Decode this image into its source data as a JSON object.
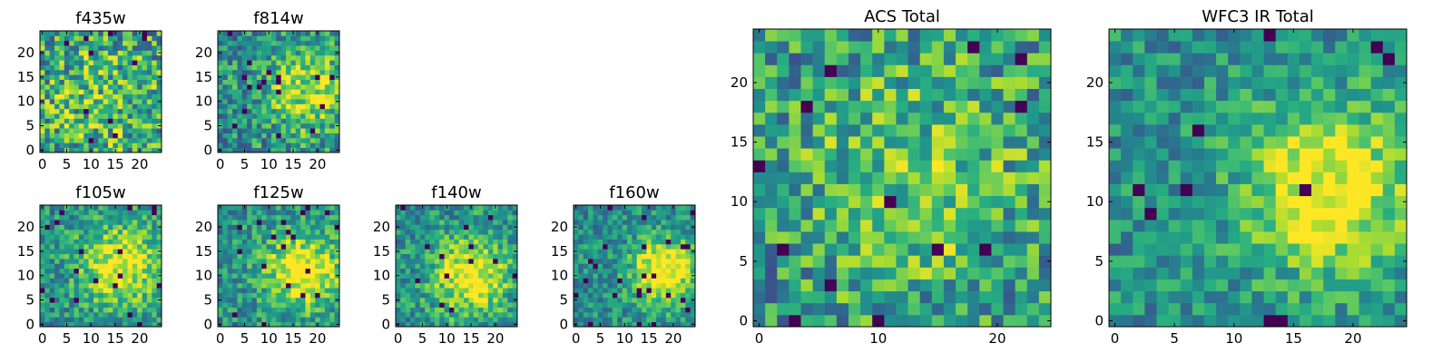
{
  "chart_data": [
    {
      "type": "heatmap",
      "title": "f435w",
      "xlabel": "",
      "ylabel": "",
      "xlim": [
        -0.5,
        24.5
      ],
      "ylim": [
        -0.5,
        24.5
      ],
      "xticks": [
        "0",
        "5",
        "10",
        "15",
        "20"
      ],
      "yticks": [
        "0",
        "5",
        "10",
        "15",
        "20"
      ],
      "grid": false,
      "colormap": "viridis",
      "pixel_grid": [
        25,
        25
      ],
      "value_range": [
        0,
        1
      ],
      "pattern": {
        "seed": 11,
        "blob_x": 12,
        "blob_y": 10,
        "blob_sigma": 12,
        "blob_amp": 0.2,
        "noise": 0.7
      }
    },
    {
      "type": "heatmap",
      "title": "f814w",
      "xlabel": "",
      "ylabel": "",
      "xlim": [
        -0.5,
        24.5
      ],
      "ylim": [
        -0.5,
        24.5
      ],
      "xticks": [
        "0",
        "5",
        "10",
        "15",
        "20"
      ],
      "yticks": [
        "0",
        "5",
        "10",
        "15",
        "20"
      ],
      "grid": false,
      "colormap": "viridis",
      "pixel_grid": [
        25,
        25
      ],
      "value_range": [
        0,
        1
      ],
      "pattern": {
        "seed": 23,
        "blob_x": 18,
        "blob_y": 12,
        "blob_sigma": 6,
        "blob_amp": 0.4,
        "noise": 0.55
      }
    },
    {
      "type": "heatmap",
      "title": "f105w",
      "xlabel": "",
      "ylabel": "",
      "xlim": [
        -0.5,
        24.5
      ],
      "ylim": [
        -0.5,
        24.5
      ],
      "xticks": [
        "0",
        "5",
        "10",
        "15",
        "20"
      ],
      "yticks": [
        "0",
        "5",
        "10",
        "15",
        "20"
      ],
      "grid": false,
      "colormap": "viridis",
      "pixel_grid": [
        25,
        25
      ],
      "value_range": [
        0,
        1
      ],
      "pattern": {
        "seed": 37,
        "blob_x": 16,
        "blob_y": 12,
        "blob_sigma": 6,
        "blob_amp": 0.5,
        "noise": 0.45
      }
    },
    {
      "type": "heatmap",
      "title": "f125w",
      "xlabel": "",
      "ylabel": "",
      "xlim": [
        -0.5,
        24.5
      ],
      "ylim": [
        -0.5,
        24.5
      ],
      "xticks": [
        "0",
        "5",
        "10",
        "15",
        "20"
      ],
      "yticks": [
        "0",
        "5",
        "10",
        "15",
        "20"
      ],
      "grid": false,
      "colormap": "viridis",
      "pixel_grid": [
        25,
        25
      ],
      "value_range": [
        0,
        1
      ],
      "pattern": {
        "seed": 41,
        "blob_x": 17,
        "blob_y": 11,
        "blob_sigma": 5.5,
        "blob_amp": 0.55,
        "noise": 0.45
      }
    },
    {
      "type": "heatmap",
      "title": "f140w",
      "xlabel": "",
      "ylabel": "",
      "xlim": [
        -0.5,
        24.5
      ],
      "ylim": [
        -0.5,
        24.5
      ],
      "xticks": [
        "0",
        "5",
        "10",
        "15",
        "20"
      ],
      "yticks": [
        "0",
        "5",
        "10",
        "15",
        "20"
      ],
      "grid": false,
      "colormap": "viridis",
      "pixel_grid": [
        25,
        25
      ],
      "value_range": [
        0,
        1
      ],
      "pattern": {
        "seed": 53,
        "blob_x": 15,
        "blob_y": 10,
        "blob_sigma": 5.5,
        "blob_amp": 0.55,
        "noise": 0.45
      }
    },
    {
      "type": "heatmap",
      "title": "f160w",
      "xlabel": "",
      "ylabel": "",
      "xlim": [
        -0.5,
        24.5
      ],
      "ylim": [
        -0.5,
        24.5
      ],
      "xticks": [
        "0",
        "5",
        "10",
        "15",
        "20"
      ],
      "yticks": [
        "0",
        "5",
        "10",
        "15",
        "20"
      ],
      "grid": false,
      "colormap": "viridis",
      "pixel_grid": [
        25,
        25
      ],
      "value_range": [
        0,
        1
      ],
      "pattern": {
        "seed": 67,
        "blob_x": 18,
        "blob_y": 11,
        "blob_sigma": 4.5,
        "blob_amp": 0.6,
        "noise": 0.4
      }
    },
    {
      "type": "heatmap",
      "title": "ACS Total",
      "xlabel": "",
      "ylabel": "",
      "xlim": [
        -0.5,
        24.5
      ],
      "ylim": [
        -0.5,
        24.5
      ],
      "xticks": [
        "0",
        "10",
        "20"
      ],
      "yticks": [
        "0",
        "5",
        "10",
        "15",
        "20"
      ],
      "grid": false,
      "colormap": "viridis",
      "pixel_grid": [
        25,
        25
      ],
      "value_range": [
        0,
        1
      ],
      "pattern": {
        "seed": 79,
        "blob_x": 13,
        "blob_y": 12,
        "blob_sigma": 8,
        "blob_amp": 0.25,
        "noise": 0.6
      }
    },
    {
      "type": "heatmap",
      "title": "WFC3 IR Total",
      "xlabel": "",
      "ylabel": "",
      "xlim": [
        -0.5,
        24.5
      ],
      "ylim": [
        -0.5,
        24.5
      ],
      "xticks": [
        "0",
        "5",
        "10",
        "15",
        "20"
      ],
      "yticks": [
        "0",
        "5",
        "10",
        "15",
        "20"
      ],
      "grid": false,
      "colormap": "viridis",
      "pixel_grid": [
        25,
        25
      ],
      "value_range": [
        0,
        1
      ],
      "pattern": {
        "seed": 97,
        "blob_x": 18,
        "blob_y": 11,
        "blob_sigma": 5,
        "blob_amp": 0.55,
        "noise": 0.4
      }
    }
  ]
}
